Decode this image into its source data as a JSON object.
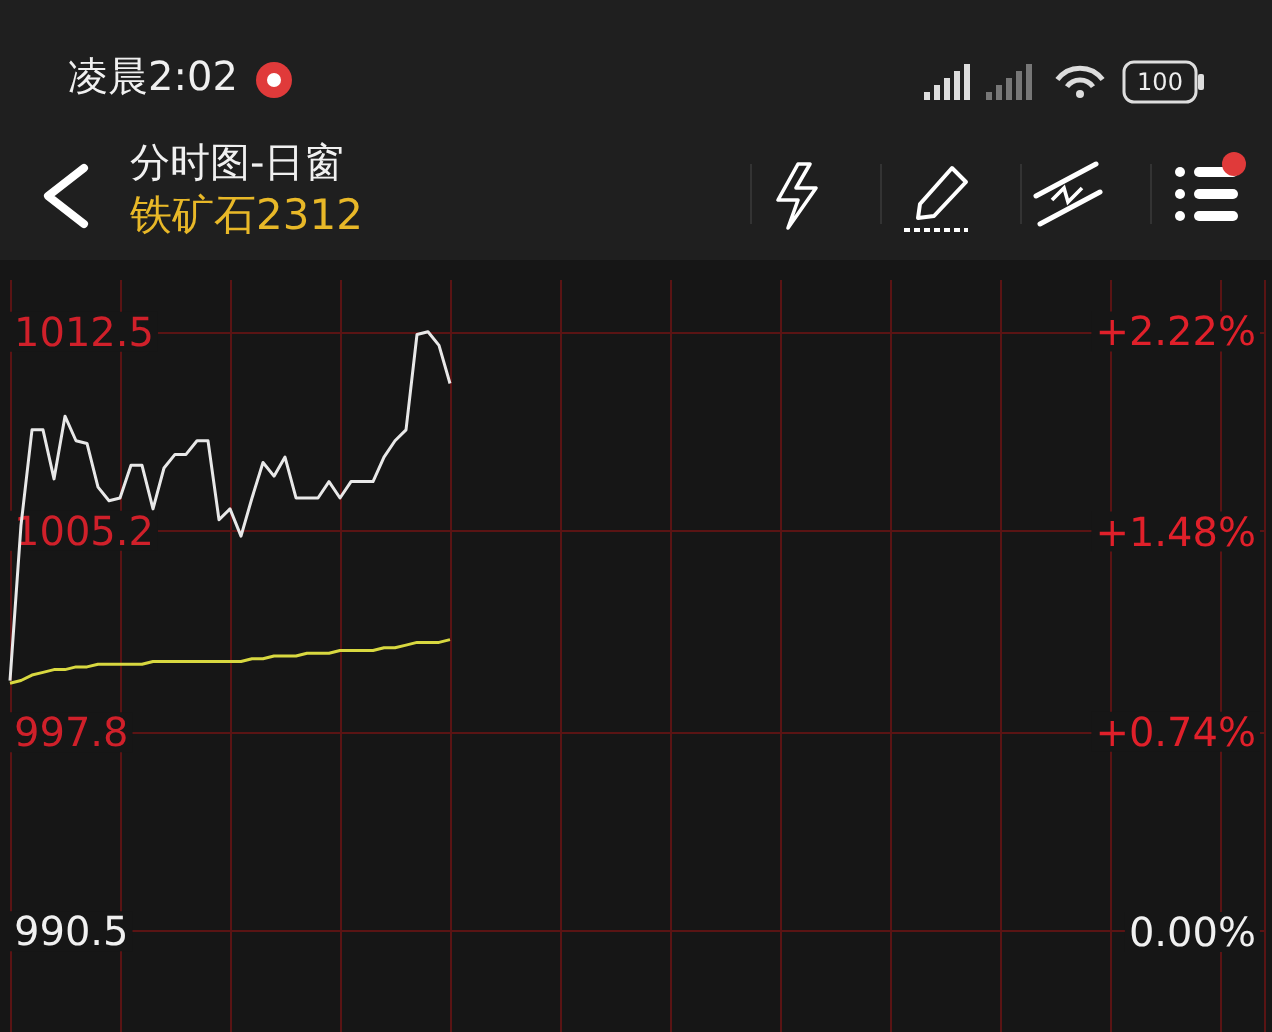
{
  "chart_data": {
    "type": "line",
    "title": "分时图-日窗",
    "subtitle": "铁矿石2312",
    "annotations": [
      "凌晨2:02",
      "100"
    ],
    "categories": [
      null,
      null,
      null,
      null,
      null,
      null,
      null,
      null,
      null,
      null,
      null,
      null,
      null,
      null,
      null,
      null,
      null,
      null,
      null,
      null,
      null,
      null,
      null,
      null,
      null,
      null,
      null,
      null,
      null,
      null,
      null,
      null,
      null,
      null,
      null,
      null,
      null,
      null,
      null,
      null,
      null,
      null,
      null,
      null,
      null,
      null,
      null,
      null,
      null,
      null,
      null,
      null,
      null,
      null,
      null,
      null,
      null,
      null,
      null,
      null,
      null,
      null,
      null,
      null,
      null,
      null,
      null,
      null,
      null,
      null,
      null,
      null,
      null,
      null,
      null,
      null,
      null,
      null,
      null,
      null,
      null,
      null,
      null,
      null,
      null,
      null,
      null,
      null,
      null,
      null,
      null,
      null,
      null,
      null,
      null,
      null,
      null,
      null,
      null,
      null,
      null,
      null,
      null,
      null,
      null,
      null,
      null,
      null,
      null,
      null,
      null,
      null,
      null,
      null,
      null
    ],
    "ylim": [
      986.8,
      1014.4
    ],
    "yticks": [
      990.5,
      997.8,
      1005.2,
      1012.5
    ],
    "y2lim": [
      -0.37,
      2.41
    ],
    "y2ticks": [
      {
        "value": 0,
        "label": "0.00%"
      },
      {
        "value": 0.74,
        "label": "+0.74%"
      },
      {
        "value": 1.48,
        "label": "+1.48%"
      },
      {
        "value": 2.22,
        "label": "+2.22%"
      }
    ],
    "tick_labels": "y",
    "grid": true,
    "line_style": "solid",
    "series": [
      {
        "color": "#e8e8e8",
        "values": [
          999.7,
          1005.4,
          1008.9,
          1008.9,
          1007.1,
          1009.4,
          1008.5,
          1008.4,
          1006.8,
          1006.3,
          1006.4,
          1007.6,
          1007.6,
          1006.0,
          1007.5,
          1008.0,
          1008.0,
          1008.5,
          1008.5,
          1005.6,
          1006.0,
          1005.0,
          1006.4,
          1007.7,
          1007.2,
          1007.9,
          1006.4,
          1006.4,
          1006.4,
          1007.0,
          1006.4,
          1007.0,
          1007.0,
          1007.0,
          1007.9,
          1008.5,
          1008.9,
          1012.4,
          1012.5,
          1012.0,
          1010.6,
          null,
          null,
          null,
          null,
          null,
          null,
          null,
          null,
          null,
          null,
          null,
          null,
          null,
          null,
          null,
          null,
          null,
          null,
          null,
          null,
          null,
          null,
          null,
          null,
          null,
          null,
          null,
          null,
          null,
          null,
          null,
          null,
          null,
          null,
          null,
          null,
          null,
          null,
          null,
          null,
          null,
          null,
          null,
          null,
          null,
          null,
          null,
          null,
          null,
          null,
          null,
          null,
          null,
          null,
          null,
          null,
          null,
          null,
          null,
          null,
          null,
          null,
          null,
          null,
          null,
          null,
          null,
          null,
          null,
          null,
          null,
          null,
          null,
          null
        ]
      },
      {
        "color": "#d8d840",
        "values": [
          999.6,
          999.7,
          999.9,
          1000.0,
          1000.1,
          1000.1,
          1000.2,
          1000.2,
          1000.3,
          1000.3,
          1000.3,
          1000.3,
          1000.3,
          1000.4,
          1000.4,
          1000.4,
          1000.4,
          1000.4,
          1000.4,
          1000.4,
          1000.4,
          1000.4,
          1000.5,
          1000.5,
          1000.6,
          1000.6,
          1000.6,
          1000.7,
          1000.7,
          1000.7,
          1000.8,
          1000.8,
          1000.8,
          1000.8,
          1000.9,
          1000.9,
          1001.0,
          1001.1,
          1001.1,
          1001.1,
          1001.2,
          null,
          null,
          null,
          null,
          null,
          null,
          null,
          null,
          null,
          null,
          null,
          null,
          null,
          null,
          null,
          null,
          null,
          null,
          null,
          null,
          null,
          null,
          null,
          null,
          null,
          null,
          null,
          null,
          null,
          null,
          null,
          null,
          null,
          null,
          null,
          null,
          null,
          null,
          null,
          null,
          null,
          null,
          null,
          null,
          null,
          null,
          null,
          null,
          null,
          null,
          null,
          null,
          null,
          null,
          null,
          null,
          null,
          null,
          null,
          null,
          null,
          null,
          null,
          null,
          null,
          null,
          null,
          null,
          null,
          null,
          null,
          null,
          null,
          null
        ]
      }
    ]
  }
}
